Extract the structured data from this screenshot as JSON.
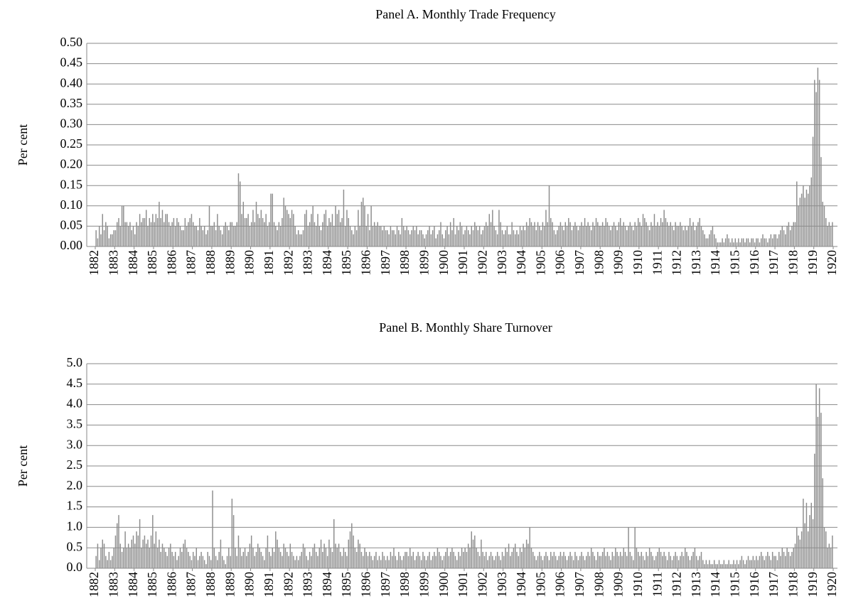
{
  "chart_data": [
    {
      "type": "bar",
      "title": "Panel A. Monthly Trade Frequency",
      "y_label": "Per cent",
      "color": "#8c8c8c",
      "grid": true,
      "xlim": [
        1882,
        1920
      ],
      "xticks": [
        1882,
        1883,
        1884,
        1885,
        1886,
        1887,
        1888,
        1889,
        1890,
        1891,
        1892,
        1893,
        1894,
        1895,
        1896,
        1897,
        1898,
        1899,
        1900,
        1901,
        1902,
        1903,
        1904,
        1905,
        1906,
        1907,
        1908,
        1909,
        1910,
        1911,
        1912,
        1913,
        1914,
        1915,
        1916,
        1917,
        1918,
        1919,
        1920
      ],
      "ylim": [
        0,
        0.5
      ],
      "yticks": [
        {
          "value": 0,
          "label": "0.00"
        },
        {
          "value": 0.05,
          "label": "0.05"
        },
        {
          "value": 0.1,
          "label": "0.10"
        },
        {
          "value": 0.15,
          "label": "0.15"
        },
        {
          "value": 0.2,
          "label": "0.20"
        },
        {
          "value": 0.25,
          "label": "0.25"
        },
        {
          "value": 0.3,
          "label": "0.30"
        },
        {
          "value": 0.35,
          "label": "0.35"
        },
        {
          "value": 0.4,
          "label": "0.40"
        },
        {
          "value": 0.45,
          "label": "0.45"
        },
        {
          "value": 0.5,
          "label": "0.50"
        }
      ],
      "values": [
        0.04,
        0.02,
        0.05,
        0.03,
        0.08,
        0.04,
        0.06,
        0.05,
        0.02,
        0.03,
        0.03,
        0.04,
        0.04,
        0.06,
        0.07,
        0.05,
        0.1,
        0.1,
        0.06,
        0.06,
        0.05,
        0.06,
        0.04,
        0.05,
        0.03,
        0.06,
        0.05,
        0.08,
        0.06,
        0.07,
        0.07,
        0.09,
        0.05,
        0.07,
        0.06,
        0.08,
        0.06,
        0.08,
        0.07,
        0.11,
        0.07,
        0.09,
        0.06,
        0.08,
        0.08,
        0.06,
        0.05,
        0.06,
        0.07,
        0.05,
        0.07,
        0.06,
        0.05,
        0.04,
        0.04,
        0.07,
        0.05,
        0.06,
        0.07,
        0.08,
        0.06,
        0.05,
        0.05,
        0.04,
        0.07,
        0.05,
        0.04,
        0.05,
        0.03,
        0.04,
        0.1,
        0.05,
        0.05,
        0.06,
        0.04,
        0.08,
        0.05,
        0.04,
        0.03,
        0.05,
        0.06,
        0.05,
        0.04,
        0.06,
        0.06,
        0.05,
        0.05,
        0.06,
        0.18,
        0.16,
        0.08,
        0.11,
        0.07,
        0.07,
        0.08,
        0.05,
        0.06,
        0.09,
        0.06,
        0.11,
        0.08,
        0.07,
        0.09,
        0.07,
        0.06,
        0.08,
        0.05,
        0.06,
        0.13,
        0.13,
        0.06,
        0.05,
        0.04,
        0.06,
        0.05,
        0.07,
        0.12,
        0.1,
        0.09,
        0.08,
        0.07,
        0.09,
        0.08,
        0.05,
        0.03,
        0.04,
        0.03,
        0.03,
        0.04,
        0.08,
        0.09,
        0.05,
        0.06,
        0.08,
        0.1,
        0.06,
        0.05,
        0.08,
        0.05,
        0.04,
        0.06,
        0.08,
        0.09,
        0.05,
        0.07,
        0.06,
        0.08,
        0.05,
        0.1,
        0.08,
        0.09,
        0.06,
        0.07,
        0.14,
        0.05,
        0.09,
        0.07,
        0.05,
        0.04,
        0.03,
        0.05,
        0.04,
        0.09,
        0.05,
        0.11,
        0.12,
        0.1,
        0.05,
        0.08,
        0.04,
        0.1,
        0.05,
        0.06,
        0.05,
        0.06,
        0.05,
        0.05,
        0.04,
        0.05,
        0.04,
        0.04,
        0.03,
        0.05,
        0.04,
        0.04,
        0.03,
        0.05,
        0.04,
        0.03,
        0.07,
        0.05,
        0.04,
        0.05,
        0.04,
        0.03,
        0.04,
        0.05,
        0.04,
        0.05,
        0.03,
        0.04,
        0.04,
        0.03,
        0.02,
        0.03,
        0.04,
        0.05,
        0.03,
        0.04,
        0.05,
        0.02,
        0.03,
        0.04,
        0.06,
        0.03,
        0.02,
        0.04,
        0.05,
        0.03,
        0.06,
        0.04,
        0.07,
        0.03,
        0.05,
        0.04,
        0.06,
        0.05,
        0.03,
        0.04,
        0.05,
        0.04,
        0.03,
        0.05,
        0.04,
        0.06,
        0.05,
        0.04,
        0.05,
        0.03,
        0.04,
        0.05,
        0.06,
        0.05,
        0.08,
        0.06,
        0.09,
        0.05,
        0.04,
        0.03,
        0.09,
        0.06,
        0.04,
        0.03,
        0.04,
        0.05,
        0.03,
        0.03,
        0.06,
        0.04,
        0.03,
        0.04,
        0.03,
        0.05,
        0.04,
        0.05,
        0.04,
        0.06,
        0.05,
        0.07,
        0.06,
        0.05,
        0.06,
        0.04,
        0.06,
        0.05,
        0.04,
        0.06,
        0.05,
        0.09,
        0.06,
        0.15,
        0.07,
        0.06,
        0.04,
        0.03,
        0.04,
        0.05,
        0.06,
        0.05,
        0.04,
        0.06,
        0.05,
        0.07,
        0.06,
        0.04,
        0.05,
        0.06,
        0.05,
        0.04,
        0.05,
        0.06,
        0.05,
        0.07,
        0.05,
        0.06,
        0.05,
        0.04,
        0.06,
        0.05,
        0.07,
        0.06,
        0.05,
        0.05,
        0.06,
        0.05,
        0.07,
        0.06,
        0.05,
        0.04,
        0.05,
        0.06,
        0.05,
        0.04,
        0.06,
        0.07,
        0.05,
        0.06,
        0.05,
        0.04,
        0.05,
        0.06,
        0.05,
        0.04,
        0.06,
        0.05,
        0.07,
        0.06,
        0.05,
        0.08,
        0.07,
        0.06,
        0.05,
        0.04,
        0.06,
        0.05,
        0.08,
        0.05,
        0.06,
        0.05,
        0.07,
        0.06,
        0.09,
        0.07,
        0.06,
        0.05,
        0.06,
        0.05,
        0.04,
        0.06,
        0.05,
        0.05,
        0.06,
        0.05,
        0.04,
        0.05,
        0.04,
        0.05,
        0.07,
        0.05,
        0.06,
        0.04,
        0.05,
        0.06,
        0.07,
        0.05,
        0.04,
        0.03,
        0.02,
        0.02,
        0.03,
        0.04,
        0.05,
        0.03,
        0.02,
        0.01,
        0.01,
        0.01,
        0.02,
        0.01,
        0.02,
        0.03,
        0.02,
        0.01,
        0.02,
        0.01,
        0.02,
        0.01,
        0.02,
        0.01,
        0.02,
        0.02,
        0.01,
        0.02,
        0.02,
        0.01,
        0.02,
        0.02,
        0.01,
        0.02,
        0.02,
        0.01,
        0.02,
        0.03,
        0.02,
        0.02,
        0.01,
        0.02,
        0.03,
        0.02,
        0.03,
        0.03,
        0.02,
        0.03,
        0.04,
        0.05,
        0.04,
        0.03,
        0.05,
        0.06,
        0.04,
        0.05,
        0.06,
        0.06,
        0.16,
        0.1,
        0.12,
        0.13,
        0.15,
        0.12,
        0.14,
        0.13,
        0.15,
        0.17,
        0.27,
        0.41,
        0.38,
        0.44,
        0.41,
        0.22,
        0.11,
        0.1,
        0.07,
        0.05,
        0.06,
        0.05,
        0.06
      ]
    },
    {
      "type": "bar",
      "title": "Panel B. Monthly Share Turnover",
      "y_label": "Per cent",
      "color": "#8c8c8c",
      "grid": true,
      "xlim": [
        1882,
        1920
      ],
      "xticks": [
        1882,
        1883,
        1884,
        1885,
        1886,
        1887,
        1888,
        1889,
        1890,
        1891,
        1892,
        1893,
        1894,
        1895,
        1896,
        1897,
        1898,
        1899,
        1900,
        1901,
        1902,
        1903,
        1904,
        1905,
        1906,
        1907,
        1908,
        1909,
        1910,
        1911,
        1912,
        1913,
        1914,
        1915,
        1916,
        1917,
        1918,
        1919,
        1920
      ],
      "ylim": [
        0,
        5
      ],
      "yticks": [
        {
          "value": 0,
          "label": "0.0"
        },
        0.5,
        {
          "value": 1,
          "label": "1.0"
        },
        1.5,
        {
          "value": 2,
          "label": "2.0"
        },
        2.5,
        {
          "value": 3,
          "label": "3.0"
        },
        3.5,
        {
          "value": 4,
          "label": "4.0"
        },
        4.5,
        {
          "value": 5,
          "label": "5.0"
        }
      ],
      "values": [
        0.3,
        0.6,
        0.2,
        0.5,
        0.7,
        0.6,
        0.3,
        0.2,
        0.4,
        0.2,
        0.3,
        0.5,
        0.8,
        1.1,
        1.3,
        0.6,
        0.4,
        0.5,
        0.9,
        0.5,
        0.6,
        0.5,
        0.7,
        0.8,
        0.6,
        0.9,
        0.8,
        1.2,
        0.5,
        0.7,
        0.8,
        0.6,
        0.7,
        0.5,
        0.8,
        1.3,
        0.6,
        0.9,
        0.5,
        0.7,
        0.4,
        0.6,
        0.5,
        0.4,
        0.3,
        0.5,
        0.6,
        0.4,
        0.3,
        0.4,
        0.2,
        0.3,
        0.5,
        0.4,
        0.6,
        0.7,
        0.5,
        0.4,
        0.3,
        0.2,
        0.4,
        0.3,
        0.5,
        0.2,
        0.3,
        0.4,
        0.3,
        0.2,
        0.1,
        0.4,
        0.3,
        0.2,
        1.9,
        0.5,
        0.3,
        0.2,
        0.4,
        0.7,
        0.3,
        0.2,
        0.1,
        0.3,
        0.5,
        0.3,
        1.7,
        1.3,
        0.5,
        0.3,
        0.8,
        0.5,
        0.3,
        0.4,
        0.5,
        0.3,
        0.4,
        0.6,
        0.8,
        0.5,
        0.3,
        0.4,
        0.6,
        0.5,
        0.4,
        0.3,
        0.2,
        0.5,
        0.8,
        0.4,
        0.3,
        0.5,
        0.4,
        0.9,
        0.7,
        0.5,
        0.4,
        0.3,
        0.6,
        0.5,
        0.4,
        0.3,
        0.6,
        0.4,
        0.3,
        0.2,
        0.3,
        0.2,
        0.3,
        0.4,
        0.6,
        0.5,
        0.3,
        0.2,
        0.4,
        0.3,
        0.5,
        0.6,
        0.4,
        0.3,
        0.5,
        0.7,
        0.4,
        0.6,
        0.5,
        0.3,
        0.7,
        0.5,
        0.4,
        1.2,
        0.6,
        0.5,
        0.6,
        0.4,
        0.3,
        0.5,
        0.4,
        0.3,
        0.7,
        0.9,
        1.1,
        0.8,
        0.5,
        0.4,
        0.7,
        0.6,
        0.4,
        0.3,
        0.5,
        0.4,
        0.3,
        0.4,
        0.3,
        0.2,
        0.3,
        0.4,
        0.2,
        0.3,
        0.2,
        0.4,
        0.3,
        0.2,
        0.3,
        0.2,
        0.4,
        0.3,
        0.5,
        0.3,
        0.2,
        0.4,
        0.3,
        0.2,
        0.3,
        0.4,
        0.4,
        0.3,
        0.5,
        0.3,
        0.4,
        0.2,
        0.3,
        0.4,
        0.3,
        0.2,
        0.4,
        0.3,
        0.2,
        0.3,
        0.4,
        0.2,
        0.3,
        0.4,
        0.3,
        0.5,
        0.4,
        0.3,
        0.2,
        0.3,
        0.4,
        0.5,
        0.3,
        0.4,
        0.5,
        0.4,
        0.3,
        0.2,
        0.4,
        0.3,
        0.5,
        0.4,
        0.5,
        0.4,
        0.6,
        0.5,
        0.9,
        0.7,
        0.8,
        0.5,
        0.4,
        0.3,
        0.7,
        0.4,
        0.3,
        0.4,
        0.2,
        0.3,
        0.4,
        0.3,
        0.2,
        0.3,
        0.4,
        0.3,
        0.2,
        0.4,
        0.3,
        0.5,
        0.4,
        0.6,
        0.3,
        0.4,
        0.5,
        0.6,
        0.4,
        0.3,
        0.5,
        0.4,
        0.6,
        0.5,
        0.7,
        0.6,
        1.0,
        0.5,
        0.4,
        0.3,
        0.2,
        0.3,
        0.4,
        0.3,
        0.2,
        0.3,
        0.4,
        0.3,
        0.2,
        0.4,
        0.3,
        0.4,
        0.3,
        0.2,
        0.3,
        0.4,
        0.3,
        0.4,
        0.3,
        0.2,
        0.3,
        0.4,
        0.3,
        0.2,
        0.4,
        0.3,
        0.2,
        0.3,
        0.4,
        0.3,
        0.2,
        0.3,
        0.4,
        0.3,
        0.5,
        0.4,
        0.3,
        0.2,
        0.4,
        0.3,
        0.3,
        0.4,
        0.5,
        0.3,
        0.4,
        0.3,
        0.2,
        0.4,
        0.3,
        0.5,
        0.4,
        0.3,
        0.4,
        0.3,
        0.5,
        0.4,
        0.3,
        1.0,
        0.4,
        0.3,
        0.2,
        1.0,
        0.5,
        0.4,
        0.3,
        0.4,
        0.3,
        0.2,
        0.4,
        0.3,
        0.5,
        0.4,
        0.3,
        0.2,
        0.3,
        0.4,
        0.5,
        0.4,
        0.3,
        0.4,
        0.3,
        0.2,
        0.4,
        0.3,
        0.2,
        0.3,
        0.4,
        0.3,
        0.2,
        0.3,
        0.4,
        0.3,
        0.5,
        0.4,
        0.3,
        0.2,
        0.3,
        0.4,
        0.5,
        0.3,
        0.2,
        0.3,
        0.4,
        0.2,
        0.1,
        0.2,
        0.1,
        0.2,
        0.1,
        0.1,
        0.2,
        0.1,
        0.1,
        0.2,
        0.1,
        0.1,
        0.2,
        0.1,
        0.1,
        0.2,
        0.1,
        0.1,
        0.2,
        0.1,
        0.2,
        0.1,
        0.2,
        0.3,
        0.2,
        0.1,
        0.2,
        0.3,
        0.2,
        0.2,
        0.3,
        0.2,
        0.3,
        0.2,
        0.3,
        0.4,
        0.3,
        0.2,
        0.3,
        0.4,
        0.3,
        0.2,
        0.4,
        0.3,
        0.3,
        0.2,
        0.4,
        0.3,
        0.5,
        0.4,
        0.3,
        0.5,
        0.4,
        0.3,
        0.4,
        0.5,
        0.6,
        1.0,
        0.8,
        0.7,
        0.9,
        1.7,
        1.1,
        1.6,
        0.9,
        1.3,
        1.6,
        1.2,
        2.8,
        4.5,
        3.7,
        4.4,
        3.8,
        2.2,
        1.0,
        0.9,
        0.5,
        0.6,
        0.5,
        0.8
      ]
    }
  ]
}
